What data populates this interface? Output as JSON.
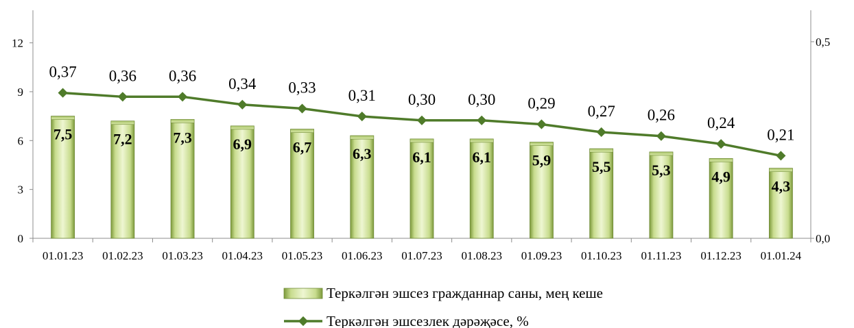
{
  "chart_data": {
    "type": "bar",
    "categories": [
      "01.01.23",
      "01.02.23",
      "01.03.23",
      "01.04.23",
      "01.05.23",
      "01.06.23",
      "01.07.23",
      "01.08.23",
      "01.09.23",
      "01.10.23",
      "01.11.23",
      "01.12.23",
      "01.01.24"
    ],
    "series": [
      {
        "name": "Теркәлгән эшсез гражданнар саны, мең кеше",
        "type": "bar",
        "axis": "left",
        "values": [
          7.5,
          7.2,
          7.3,
          6.9,
          6.7,
          6.3,
          6.1,
          6.1,
          5.9,
          5.5,
          5.3,
          4.9,
          4.3
        ],
        "labels": [
          "7,5",
          "7,2",
          "7,3",
          "6,9",
          "6,7",
          "6,3",
          "6,1",
          "6,1",
          "5,9",
          "5,5",
          "5,3",
          "4,9",
          "4,3"
        ],
        "color": "#b5cc7a"
      },
      {
        "name": "Теркәлгән эшсезлек дәрәҗәсе, %",
        "type": "line",
        "axis": "right",
        "values": [
          0.37,
          0.36,
          0.36,
          0.34,
          0.33,
          0.31,
          0.3,
          0.3,
          0.29,
          0.27,
          0.26,
          0.24,
          0.21
        ],
        "labels": [
          "0,37",
          "0,36",
          "0,36",
          "0,34",
          "0,33",
          "0,31",
          "0,30",
          "0,30",
          "0,29",
          "0,27",
          "0,26",
          "0,24",
          "0,21"
        ],
        "color": "#4f7b2a"
      }
    ],
    "y_left": {
      "ylim": [
        0,
        14
      ],
      "ticks": [
        0,
        3,
        6,
        9,
        12
      ],
      "tick_labels": [
        "0",
        "3",
        "6",
        "9",
        "12"
      ]
    },
    "y_right": {
      "ylim": [
        0,
        0.58
      ],
      "ticks": [
        0,
        0.5
      ],
      "tick_labels": [
        "0,0",
        "0,5"
      ]
    },
    "title": "",
    "xlabel": "",
    "ylabel": "",
    "grid": false,
    "legend_position": "bottom"
  }
}
